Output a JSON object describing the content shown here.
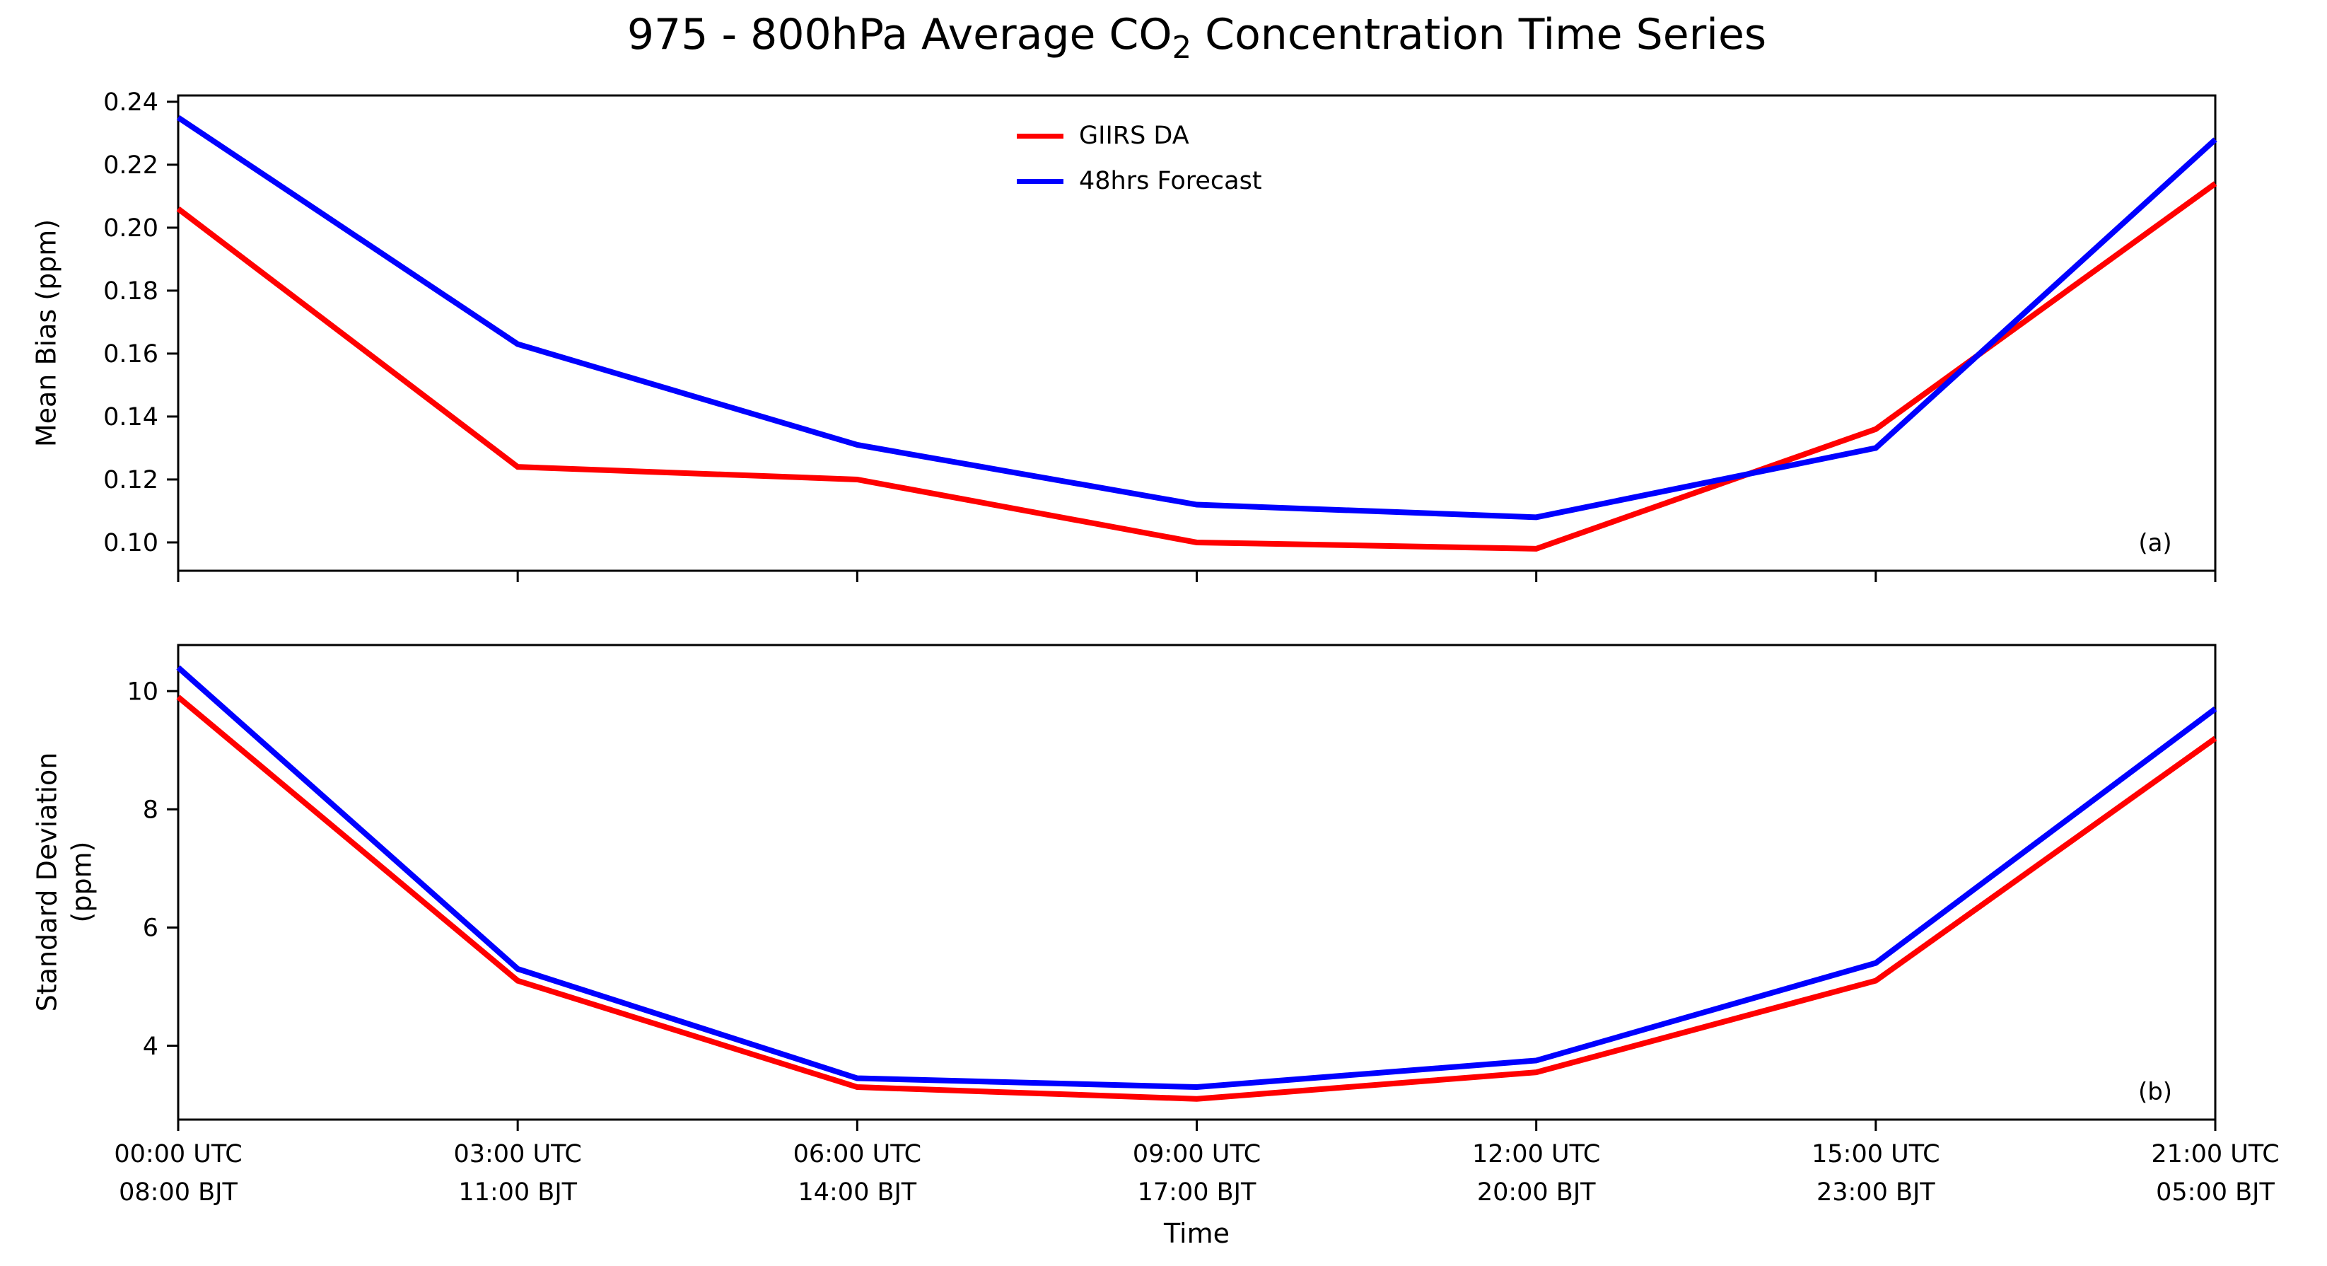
{
  "title_parts": {
    "pre": "975 - 800hPa Average CO",
    "sub": "2",
    "post": " Concentration Time Series"
  },
  "title_full": "975 - 800hPa Average CO2 Concentration Time Series",
  "xlabel": "Time",
  "legend": [
    {
      "label": "GIIRS DA",
      "color": "#ff0000"
    },
    {
      "label": "48hrs Forecast",
      "color": "#0000ff"
    }
  ],
  "x_tick_labels": [
    {
      "utc": "00:00 UTC",
      "bjt": "08:00 BJT"
    },
    {
      "utc": "03:00 UTC",
      "bjt": "11:00 BJT"
    },
    {
      "utc": "06:00 UTC",
      "bjt": "14:00 BJT"
    },
    {
      "utc": "09:00 UTC",
      "bjt": "17:00 BJT"
    },
    {
      "utc": "12:00 UTC",
      "bjt": "20:00 BJT"
    },
    {
      "utc": "15:00 UTC",
      "bjt": "23:00 BJT"
    },
    {
      "utc": "21:00 UTC",
      "bjt": "05:00 BJT"
    }
  ],
  "chart_data": [
    {
      "type": "line",
      "panel_label": "(a)",
      "ylabel": "Mean Bias (ppm)",
      "ylim": [
        0.091,
        0.242
      ],
      "yticks": [
        0.1,
        0.12,
        0.14,
        0.16,
        0.18,
        0.2,
        0.22,
        0.24
      ],
      "ytick_labels": [
        "0.10",
        "0.12",
        "0.14",
        "0.16",
        "0.18",
        "0.20",
        "0.22",
        "0.24"
      ],
      "grid": false,
      "categories": [
        "00:00 UTC",
        "03:00 UTC",
        "06:00 UTC",
        "09:00 UTC",
        "12:00 UTC",
        "15:00 UTC",
        "21:00 UTC"
      ],
      "series": [
        {
          "name": "GIIRS DA",
          "color": "#ff0000",
          "values": [
            0.206,
            0.124,
            0.12,
            0.1,
            0.098,
            0.136,
            0.214
          ]
        },
        {
          "name": "48hrs Forecast",
          "color": "#0000ff",
          "values": [
            0.235,
            0.163,
            0.131,
            0.112,
            0.108,
            0.13,
            0.228
          ]
        }
      ]
    },
    {
      "type": "line",
      "panel_label": "(b)",
      "ylabel": "Standard Deviation\n(ppm)",
      "ylim": [
        2.75,
        10.78
      ],
      "yticks": [
        4,
        6,
        8,
        10
      ],
      "ytick_labels": [
        "4",
        "6",
        "8",
        "10"
      ],
      "grid": false,
      "categories": [
        "00:00 UTC",
        "03:00 UTC",
        "06:00 UTC",
        "09:00 UTC",
        "12:00 UTC",
        "15:00 UTC",
        "21:00 UTC"
      ],
      "series": [
        {
          "name": "GIIRS DA",
          "color": "#ff0000",
          "values": [
            9.9,
            5.1,
            3.3,
            3.1,
            3.55,
            5.1,
            9.2
          ]
        },
        {
          "name": "48hrs Forecast",
          "color": "#0000ff",
          "values": [
            10.4,
            5.3,
            3.45,
            3.3,
            3.75,
            5.4,
            9.7
          ]
        }
      ]
    }
  ],
  "axis_color": "#000000"
}
